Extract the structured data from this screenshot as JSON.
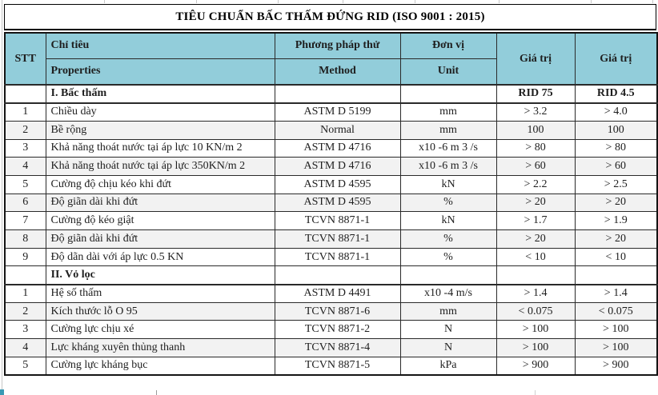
{
  "title": "TIÊU CHUẨN BẤC THẤM ĐỨNG RID (ISO 9001 : 2015)",
  "colors": {
    "header_bg": "#92cdda",
    "stripe_bg": "#f2f2f2",
    "border": "#141414",
    "accent_square": "#3a9ab5"
  },
  "header": {
    "stt": "STT",
    "criteria_vi": "Chỉ tiêu",
    "criteria_en": "Properties",
    "method_vi": "Phương pháp thử",
    "method_en": "Method",
    "unit_vi": "Đơn vị",
    "unit_en": "Unit",
    "value_col1": "Giá trị",
    "value_col2": "Giá trị"
  },
  "sections": [
    {
      "label": "I. Bấc thấm",
      "value1": "RID 75",
      "value2": "RID 4.5",
      "rows": [
        {
          "stt": "1",
          "name": "Chiều dày",
          "method": "ASTM D 5199",
          "unit": "mm",
          "v1": "> 3.2",
          "v2": "> 4.0",
          "striped": false
        },
        {
          "stt": "2",
          "name": "Bề rộng",
          "method": "Normal",
          "unit": "mm",
          "v1": "100",
          "v2": "100",
          "striped": true
        },
        {
          "stt": "3",
          "name": "Khả năng thoát nước tại áp lực 10 KN/m 2",
          "method": "ASTM D 4716",
          "unit": "x10 -6 m 3 /s",
          "v1": "> 80",
          "v2": "> 80",
          "striped": false
        },
        {
          "stt": "4",
          "name": "Khả năng thoát nước tại áp lực 350KN/m 2",
          "method": "ASTM D 4716",
          "unit": "x10 -6 m 3 /s",
          "v1": "> 60",
          "v2": "> 60",
          "striped": true
        },
        {
          "stt": "5",
          "name": "Cường độ chịu kéo khi đứt",
          "method": "ASTM D 4595",
          "unit": "kN",
          "v1": "> 2.2",
          "v2": "> 2.5",
          "striped": false
        },
        {
          "stt": "6",
          "name": "Độ giãn dài khi đứt",
          "method": "ASTM D 4595",
          "unit": "%",
          "v1": "> 20",
          "v2": "> 20",
          "striped": true
        },
        {
          "stt": "7",
          "name": "Cường độ kéo giật",
          "method": "TCVN 8871-1",
          "unit": "kN",
          "v1": "> 1.7",
          "v2": "> 1.9",
          "striped": false
        },
        {
          "stt": "8",
          "name": "Độ giãn dài khi đứt",
          "method": "TCVN 8871-1",
          "unit": "%",
          "v1": "> 20",
          "v2": "> 20",
          "striped": true
        },
        {
          "stt": "9",
          "name": "Độ dãn dài với áp lực 0.5 KN",
          "method": "TCVN 8871-1",
          "unit": "%",
          "v1": "< 10",
          "v2": "< 10",
          "striped": false
        }
      ]
    },
    {
      "label": "II. Vỏ lọc",
      "value1": "",
      "value2": "",
      "rows": [
        {
          "stt": "1",
          "name": "Hệ số thấm",
          "method": "ASTM D 4491",
          "unit": "x10 -4 m/s",
          "v1": "> 1.4",
          "v2": "> 1.4",
          "striped": false
        },
        {
          "stt": "2",
          "name": "Kích thước lỗ O 95",
          "method": "TCVN 8871-6",
          "unit": "mm",
          "v1": "< 0.075",
          "v2": "< 0.075",
          "striped": true
        },
        {
          "stt": "3",
          "name": "Cường lực chịu xé",
          "method": "TCVN 8871-2",
          "unit": "N",
          "v1": "> 100",
          "v2": "> 100",
          "striped": false
        },
        {
          "stt": "4",
          "name": "Lực kháng xuyên thủng thanh",
          "method": "TCVN 8871-4",
          "unit": "N",
          "v1": "> 100",
          "v2": "> 100",
          "striped": true
        },
        {
          "stt": "5",
          "name": "Cường lực kháng bục",
          "method": "TCVN 8871-5",
          "unit": "kPa",
          "v1": "> 900",
          "v2": "> 900",
          "striped": false
        }
      ]
    }
  ]
}
